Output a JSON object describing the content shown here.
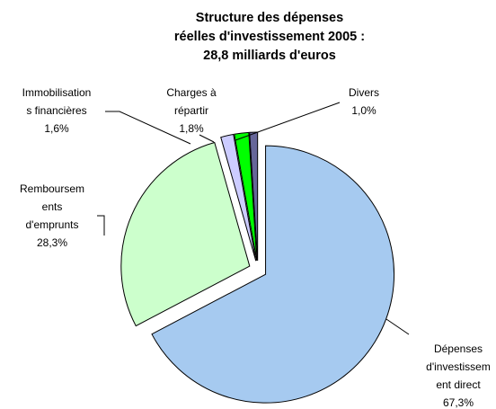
{
  "chart_data": {
    "type": "pie",
    "title": "Structure des dépenses\nréelles d'investissement 2005 :\n28,8 milliards d'euros",
    "categories": [
      "Dépenses\nd'investissem\nent direct",
      "Remboursem\nents\nd'emprunts",
      "Immobilisation\ns financières",
      "Charges à\nrépartir",
      "Divers"
    ],
    "values": [
      67.3,
      28.3,
      1.6,
      1.8,
      1.0
    ],
    "value_labels": [
      "67,3%",
      "28,3%",
      "1,6%",
      "1,8%",
      "1,0%"
    ],
    "colors": [
      "#a6caf0",
      "#ccffcc",
      "#ccccff",
      "#00ff00",
      "#666699"
    ]
  }
}
